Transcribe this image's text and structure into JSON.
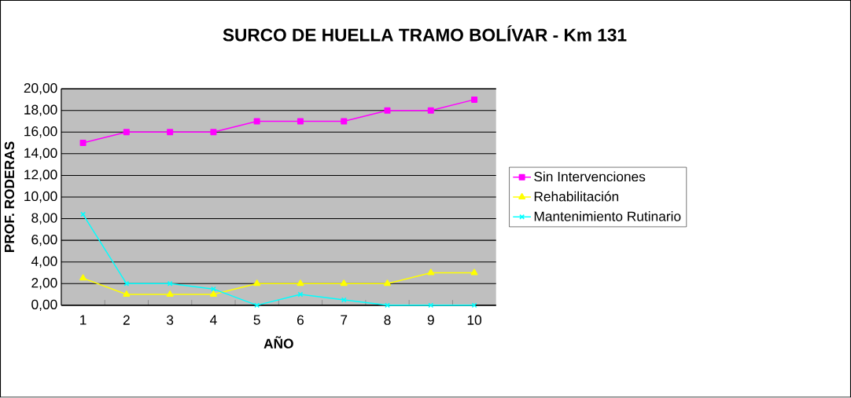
{
  "chart_data": {
    "type": "line",
    "title": "SURCO DE HUELLA TRAMO BOLÍVAR - Km 131",
    "xlabel": "AÑO",
    "ylabel": "PROF. RODERAS",
    "categories": [
      "1",
      "2",
      "3",
      "4",
      "5",
      "6",
      "7",
      "8",
      "9",
      "10"
    ],
    "series": [
      {
        "name": "Sin Intervenciones",
        "color": "#ff00ff",
        "marker": "square",
        "values": [
          15,
          16,
          16,
          16,
          17,
          17,
          17,
          18,
          18,
          19
        ]
      },
      {
        "name": "Rehabilitación",
        "color": "#ffff00",
        "marker": "triangle",
        "values": [
          2.5,
          1,
          1,
          1,
          2,
          2,
          2,
          2,
          3,
          3
        ]
      },
      {
        "name": "Mantenimiento Rutinario",
        "color": "#00ffff",
        "marker": "cross",
        "values": [
          8.4,
          2,
          2,
          1.5,
          0,
          1,
          0.5,
          0,
          0,
          0
        ]
      }
    ],
    "ylim": [
      0,
      20
    ],
    "yticks": [
      {
        "value": 0,
        "label": "0,00"
      },
      {
        "value": 2,
        "label": "2,00"
      },
      {
        "value": 4,
        "label": "4,00"
      },
      {
        "value": 6,
        "label": "6,00"
      },
      {
        "value": 8,
        "label": "8,00"
      },
      {
        "value": 10,
        "label": "10,00"
      },
      {
        "value": 12,
        "label": "12,00"
      },
      {
        "value": 14,
        "label": "14,00"
      },
      {
        "value": 16,
        "label": "16,00"
      },
      {
        "value": 18,
        "label": "18,00"
      },
      {
        "value": 20,
        "label": "20,00"
      }
    ],
    "grid": "y",
    "legend": "right"
  }
}
